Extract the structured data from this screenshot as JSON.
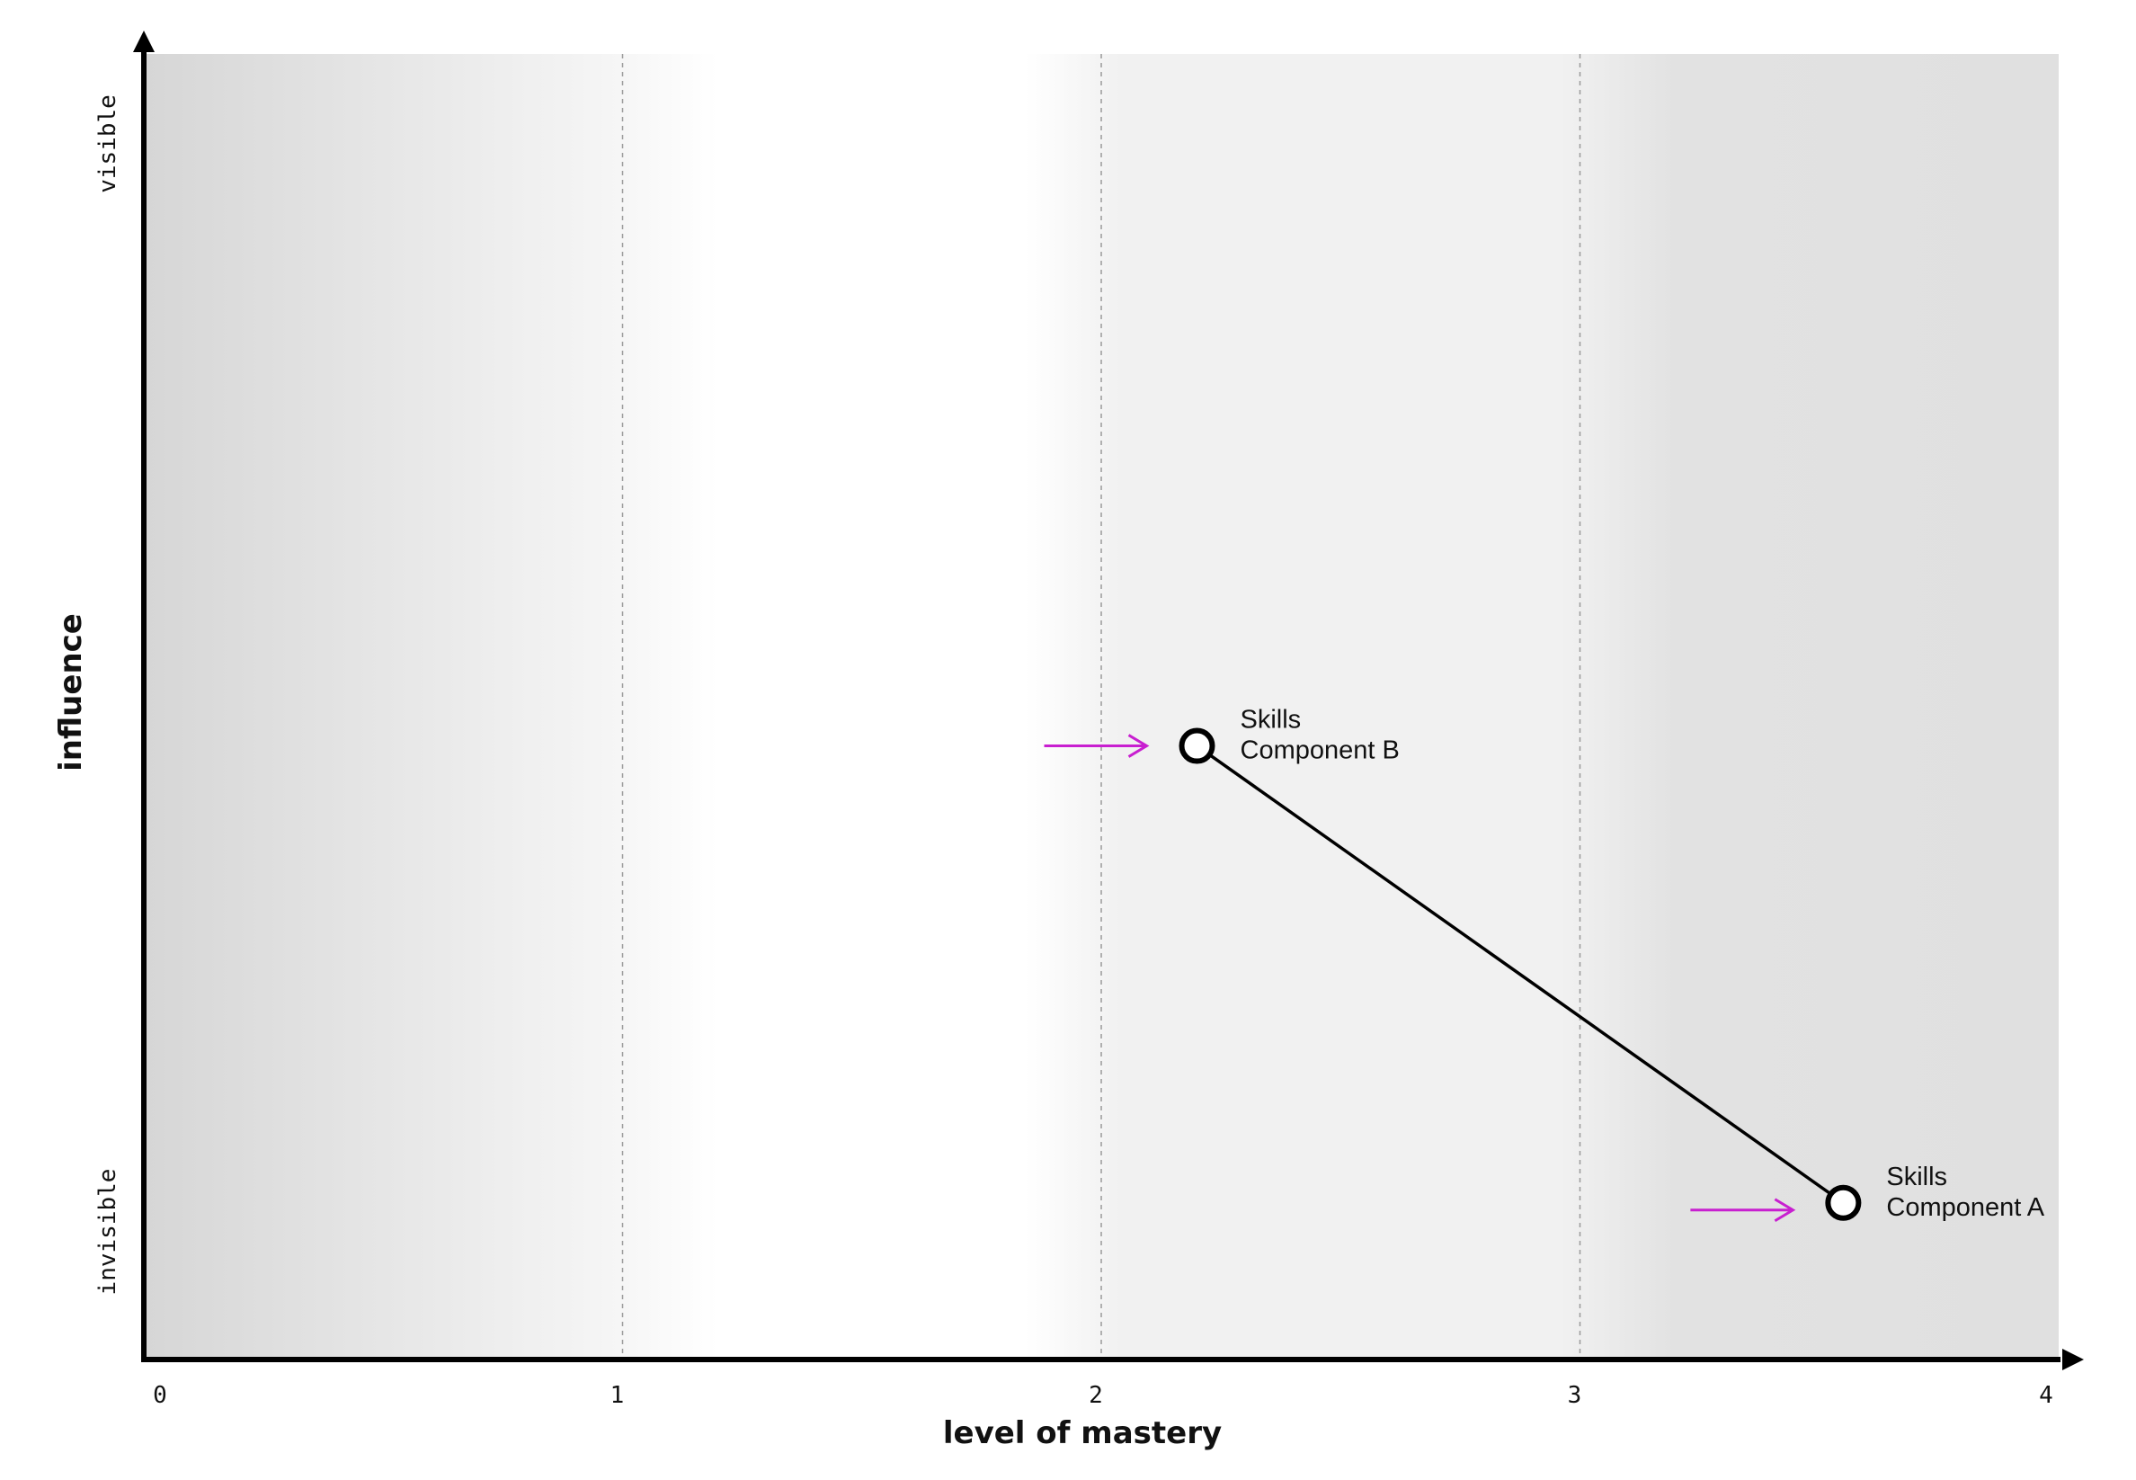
{
  "chart_data": {
    "type": "scatter",
    "title": "",
    "xlabel": "level of mastery",
    "ylabel": "influence",
    "xlim": [
      0,
      4
    ],
    "ylim": [
      0,
      1
    ],
    "xticks": [
      "0",
      "1",
      "2",
      "3",
      "4"
    ],
    "y_end_labels": {
      "bottom": "invisible",
      "top": "visible"
    },
    "grid": {
      "vertical_dashed_at": [
        1,
        2,
        3
      ]
    },
    "background_bands": "gray gradient zones: darker near 0, white between 1 and 2, light gray 2–3, darker gray 3–4",
    "points": [
      {
        "id": "b",
        "label": [
          "Skills",
          "Component B"
        ],
        "x": 2.2,
        "y": 0.47
      },
      {
        "id": "a",
        "label": [
          "Skills",
          "Component A"
        ],
        "x": 3.55,
        "y": 0.12
      }
    ],
    "connector": [
      "b",
      "a"
    ],
    "arrows": [
      {
        "target": "b",
        "direction": "right",
        "color": "#c81fd0"
      },
      {
        "target": "a",
        "direction": "right",
        "color": "#c81fd0"
      }
    ],
    "colors": {
      "axis": "#000000",
      "arrow": "#c81fd0",
      "point_fill": "#ffffff",
      "grid": "#9a9a9a"
    }
  }
}
